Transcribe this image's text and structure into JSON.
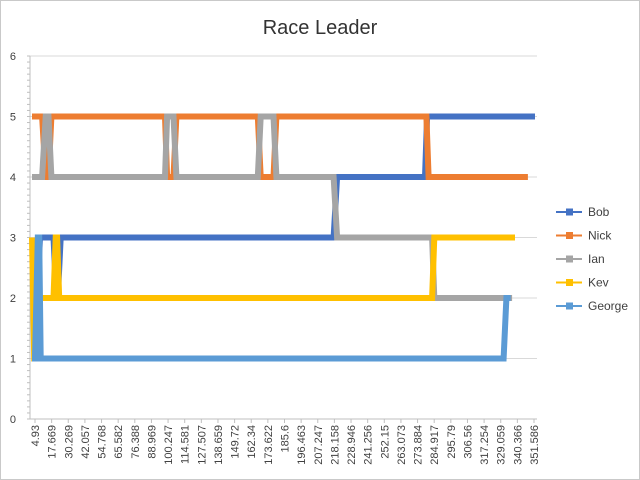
{
  "chart_data": {
    "type": "line",
    "title": "Race Leader",
    "xlabel": "",
    "ylabel": "",
    "ylim": [
      0,
      6
    ],
    "yticks": [
      0,
      1,
      2,
      3,
      4,
      5,
      6
    ],
    "grid": "horizontal",
    "legend_position": "right",
    "x_tick_labels": [
      "4.93",
      "17.669",
      "30.269",
      "42.057",
      "54.768",
      "65.582",
      "76.388",
      "88.969",
      "100.247",
      "114.581",
      "127.507",
      "138.659",
      "149.72",
      "162.34",
      "173.622",
      "185.6",
      "196.463",
      "207.247",
      "218.158",
      "228.946",
      "241.256",
      "252.15",
      "263.073",
      "273.884",
      "284.917",
      "295.79",
      "306.56",
      "317.254",
      "329.059",
      "340.366",
      "351.586"
    ],
    "x_range": [
      4.93,
      357
    ],
    "series": [
      {
        "name": "Bob",
        "color": "#4472C4",
        "values": [
          [
            4.93,
            2
          ],
          [
            8.5,
            2
          ],
          [
            10.5,
            3
          ],
          [
            20,
            3
          ],
          [
            22,
            2
          ],
          [
            23,
            2
          ],
          [
            25,
            3
          ],
          [
            216,
            3
          ],
          [
            218.5,
            4
          ],
          [
            280,
            4
          ],
          [
            281.5,
            5
          ],
          [
            357,
            5
          ]
        ]
      },
      {
        "name": "Nick",
        "color": "#ED7D31",
        "values": [
          [
            4.93,
            5
          ],
          [
            12,
            5
          ],
          [
            14.5,
            4
          ],
          [
            16.5,
            4
          ],
          [
            18.5,
            5
          ],
          [
            98,
            5
          ],
          [
            99.5,
            4
          ],
          [
            104,
            4
          ],
          [
            106,
            5
          ],
          [
            163,
            5
          ],
          [
            165,
            4
          ],
          [
            174,
            4
          ],
          [
            176,
            5
          ],
          [
            281,
            5
          ],
          [
            282.5,
            4
          ],
          [
            352,
            4
          ]
        ]
      },
      {
        "name": "Ian",
        "color": "#A5A5A5",
        "values": [
          [
            4.93,
            4
          ],
          [
            12,
            4
          ],
          [
            14.5,
            5
          ],
          [
            16.5,
            5
          ],
          [
            18.5,
            4
          ],
          [
            98,
            4
          ],
          [
            99.5,
            5
          ],
          [
            104,
            5
          ],
          [
            106,
            4
          ],
          [
            163,
            4
          ],
          [
            165,
            5
          ],
          [
            174,
            5
          ],
          [
            176,
            4
          ],
          [
            216,
            4
          ],
          [
            218.5,
            3
          ],
          [
            285,
            3
          ],
          [
            286.5,
            2
          ],
          [
            341,
            2
          ]
        ]
      },
      {
        "name": "Kev",
        "color": "#FFC000",
        "values": [
          [
            4.93,
            3
          ],
          [
            6.5,
            1
          ],
          [
            8,
            1
          ],
          [
            10,
            2
          ],
          [
            20,
            2
          ],
          [
            21.5,
            3
          ],
          [
            22.5,
            3
          ],
          [
            24,
            2
          ],
          [
            285,
            2
          ],
          [
            286.5,
            3
          ],
          [
            343,
            3
          ]
        ]
      },
      {
        "name": "George",
        "color": "#5B9BD5",
        "values": [
          [
            4.93,
            1
          ],
          [
            7,
            1
          ],
          [
            9,
            3
          ],
          [
            10,
            3
          ],
          [
            11,
            1
          ],
          [
            335,
            1
          ],
          [
            337,
            2
          ],
          [
            340,
            2
          ]
        ]
      }
    ]
  }
}
